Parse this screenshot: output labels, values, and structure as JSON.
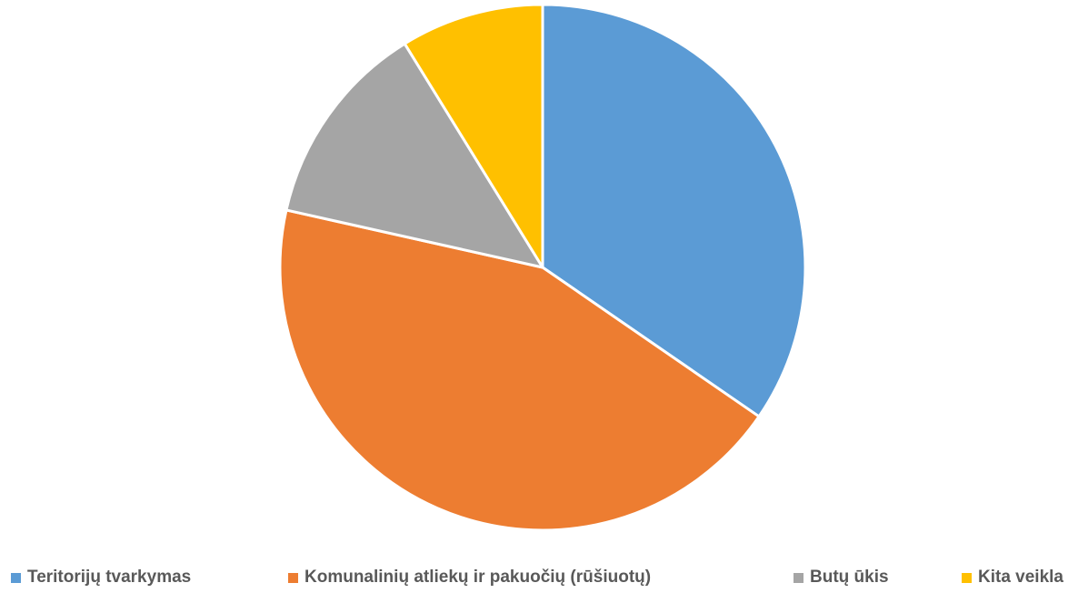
{
  "chart_data": {
    "type": "pie",
    "title": "",
    "legend_position": "bottom",
    "series": [
      {
        "values": [
          34.6,
          43.9,
          12.7,
          8.8
        ]
      }
    ],
    "categories": [
      "Teritorijų tvarkymas",
      "Komunalinių atliekų ir pakuočių (rūšiuotų)",
      "Butų ūkis",
      "Kita veikla"
    ],
    "colors": [
      "#5B9BD5",
      "#ED7D31",
      "#A5A5A5",
      "#FFC000"
    ],
    "legend": [
      {
        "label": "Teritorijų tvarkymas",
        "color": "#5B9BD5"
      },
      {
        "label": "Komunalinių atliekų ir pakuočių (rūšiuotų)",
        "color": "#ED7D31"
      },
      {
        "label": "Butų ūkis",
        "color": "#A5A5A5"
      },
      {
        "label": "Kita veikla",
        "color": "#FFC000"
      }
    ]
  }
}
